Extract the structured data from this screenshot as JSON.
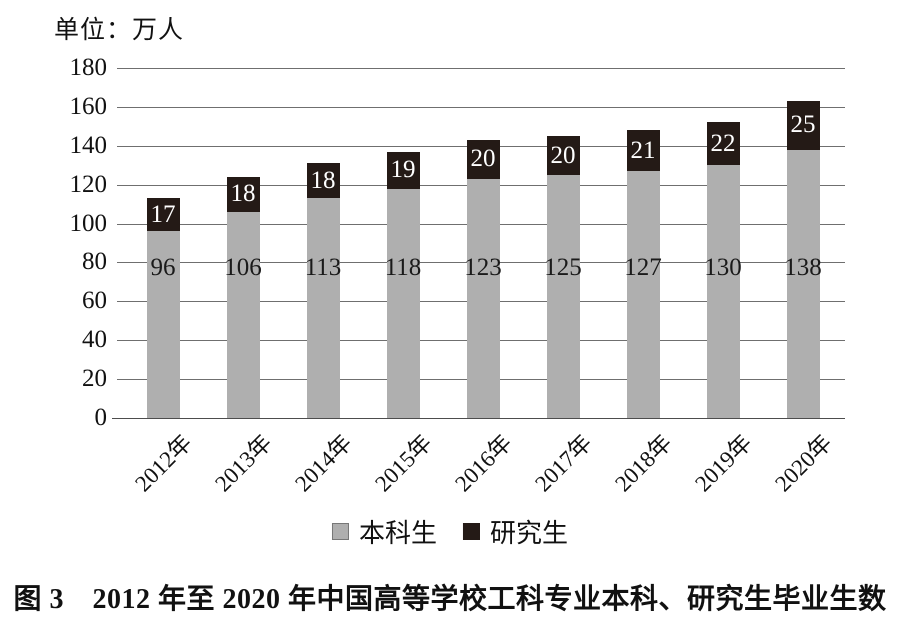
{
  "unit_label": "单位：万人",
  "legend": {
    "items": [
      {
        "label": "本科生",
        "color": "#afafaf"
      },
      {
        "label": "研究生",
        "color": "#241a16"
      }
    ]
  },
  "caption": "图 3　2012 年至 2020 年中国高等学校工科专业本科、研究生毕业生数",
  "colors": {
    "undergrad_bar": "#afafaf",
    "graduate_bar": "#241a16",
    "gridline": "#6f6f6f",
    "axis": "#4d4d4d",
    "text": "#111111",
    "cap_value_text": "#ffffff"
  },
  "chart_data": {
    "type": "bar",
    "stacked": true,
    "title": "2012年至2020年中国高等学校工科专业本科、研究生毕业生数",
    "unit": "万人",
    "categories": [
      "2012年",
      "2013年",
      "2014年",
      "2015年",
      "2016年",
      "2017年",
      "2018年",
      "2019年",
      "2020年"
    ],
    "series": [
      {
        "name": "本科生",
        "color": "#afafaf",
        "label_color": "#1a1a1a",
        "values": [
          96,
          106,
          113,
          118,
          123,
          125,
          127,
          130,
          138
        ]
      },
      {
        "name": "研究生",
        "color": "#241a16",
        "label_color": "#ffffff",
        "values": [
          17,
          18,
          18,
          19,
          20,
          20,
          21,
          22,
          25
        ]
      }
    ],
    "ylim": [
      0,
      180
    ],
    "yticks": [
      0,
      20,
      40,
      60,
      80,
      100,
      120,
      140,
      160,
      180
    ],
    "grid": true,
    "value_labels": true,
    "legend_position": "bottom"
  }
}
